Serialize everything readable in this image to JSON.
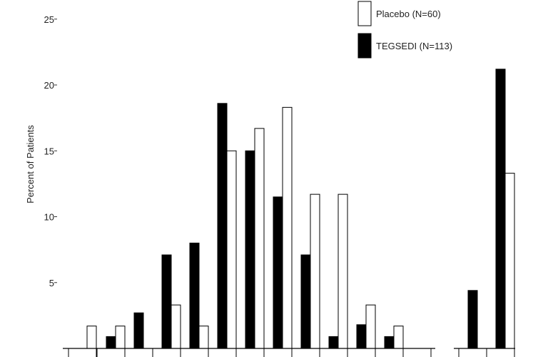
{
  "chart_data": {
    "type": "bar",
    "title": "",
    "xlabel": "",
    "ylabel": "Percent of Patients",
    "ylim": [
      0,
      27
    ],
    "yticks": [
      5,
      10,
      15,
      20,
      25
    ],
    "grid": false,
    "legend_position": "top-right",
    "categories": [
      "",
      "",
      "",
      "",
      "",
      "",
      "",
      "",
      "",
      "",
      "",
      "",
      "",
      "",
      "",
      ""
    ],
    "groups": [
      {
        "name": "main",
        "category_indices": [
          0,
          1,
          2,
          3,
          4,
          5,
          6,
          7,
          8,
          9,
          10,
          11,
          12,
          13
        ]
      },
      {
        "name": "right",
        "category_indices": [
          14,
          15
        ]
      }
    ],
    "series": [
      {
        "name": "TEGSEDI (N=113)",
        "color": "#000000",
        "values": [
          0,
          0.9,
          2.7,
          7.1,
          8.0,
          18.6,
          15.0,
          11.5,
          7.1,
          0.9,
          1.8,
          0.9,
          0,
          0,
          4.4,
          21.2
        ]
      },
      {
        "name": "Placebo (N=60)",
        "color": "#ffffff",
        "values": [
          1.7,
          1.7,
          0,
          3.3,
          1.7,
          15.0,
          16.7,
          18.3,
          11.7,
          11.7,
          3.3,
          1.7,
          0,
          0,
          0,
          13.3
        ]
      }
    ],
    "legend": [
      {
        "label": "Placebo (N=60)",
        "fill": "#ffffff"
      },
      {
        "label": "TEGSEDI (N=113)",
        "fill": "#000000"
      }
    ]
  }
}
